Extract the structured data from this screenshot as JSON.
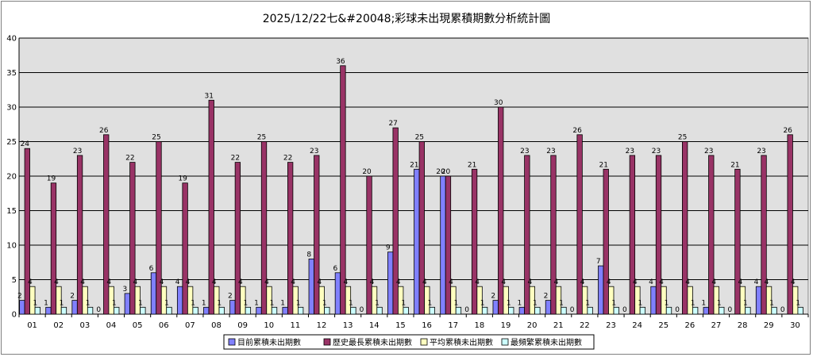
{
  "chart_data": {
    "type": "bar",
    "title": "2025/12/22七&#20048;彩球未出現累積期數分析統計圖",
    "xlabel": "",
    "ylabel": "",
    "ylim": [
      0,
      40
    ],
    "yticks": [
      0,
      5,
      10,
      15,
      20,
      25,
      30,
      35,
      40
    ],
    "grid": true,
    "legend_position": "bottom",
    "categories": [
      "01",
      "02",
      "03",
      "04",
      "05",
      "06",
      "07",
      "08",
      "09",
      "10",
      "11",
      "12",
      "13",
      "14",
      "15",
      "16",
      "17",
      "18",
      "19",
      "20",
      "21",
      "22",
      "23",
      "24",
      "25",
      "26",
      "27",
      "28",
      "29",
      "30"
    ],
    "series": [
      {
        "name": "目前累積未出期數",
        "color": "#8080ff",
        "values": [
          2,
          1,
          2,
          0,
          3,
          6,
          4,
          1,
          2,
          1,
          1,
          8,
          6,
          0,
          9,
          21,
          20,
          0,
          2,
          1,
          2,
          0,
          7,
          0,
          4,
          0,
          1,
          0,
          4,
          0
        ]
      },
      {
        "name": "歷史最長累積未出期數",
        "color": "#993366",
        "values": [
          24,
          19,
          23,
          26,
          22,
          25,
          19,
          31,
          22,
          25,
          22,
          23,
          36,
          20,
          27,
          25,
          20,
          21,
          30,
          23,
          23,
          26,
          21,
          23,
          23,
          25,
          23,
          21,
          23,
          26
        ]
      },
      {
        "name": "平均累積未出期數",
        "color": "#ffffc0",
        "values": [
          4,
          4,
          4,
          4,
          4,
          4,
          4,
          4,
          4,
          4,
          4,
          4,
          4,
          4,
          4,
          4,
          4,
          4,
          4,
          4,
          4,
          4,
          4,
          4,
          4,
          4,
          4,
          4,
          4,
          4
        ]
      },
      {
        "name": "最頻繁累積未出期數",
        "color": "#ccffff",
        "values": [
          1,
          1,
          1,
          1,
          1,
          1,
          1,
          1,
          1,
          1,
          1,
          1,
          1,
          1,
          1,
          1,
          1,
          1,
          1,
          1,
          1,
          1,
          1,
          1,
          1,
          1,
          1,
          1,
          1,
          1
        ]
      }
    ]
  }
}
